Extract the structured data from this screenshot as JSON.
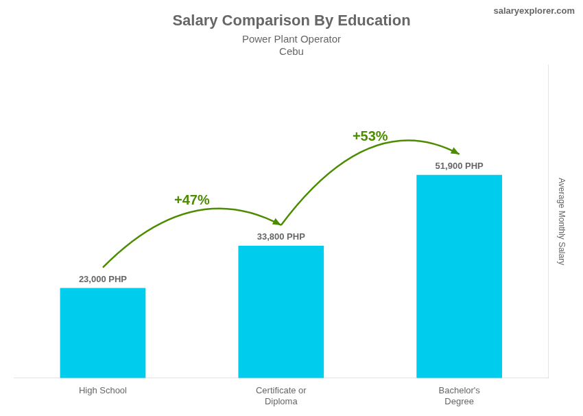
{
  "chart_data": {
    "type": "bar",
    "title": "Salary Comparison By Education",
    "subtitle": [
      "Power Plant Operator",
      "Cebu"
    ],
    "source": "salaryexplorer.com",
    "ylabel": "Average Monthly Salary",
    "categories": [
      "High School",
      "Certificate or\nDiploma",
      "Bachelor's\nDegree"
    ],
    "values": [
      23000,
      33800,
      51900
    ],
    "value_labels": [
      "23,000 PHP",
      "33,800 PHP",
      "51,900 PHP"
    ],
    "data_labels": true,
    "color": "#00ccee",
    "ylim": [
      0,
      80000
    ],
    "grid": false,
    "tick_labels": "x",
    "annotations": [
      {
        "text": "+47%",
        "from": 0,
        "to": 1
      },
      {
        "text": "+53%",
        "from": 1,
        "to": 2
      }
    ]
  }
}
